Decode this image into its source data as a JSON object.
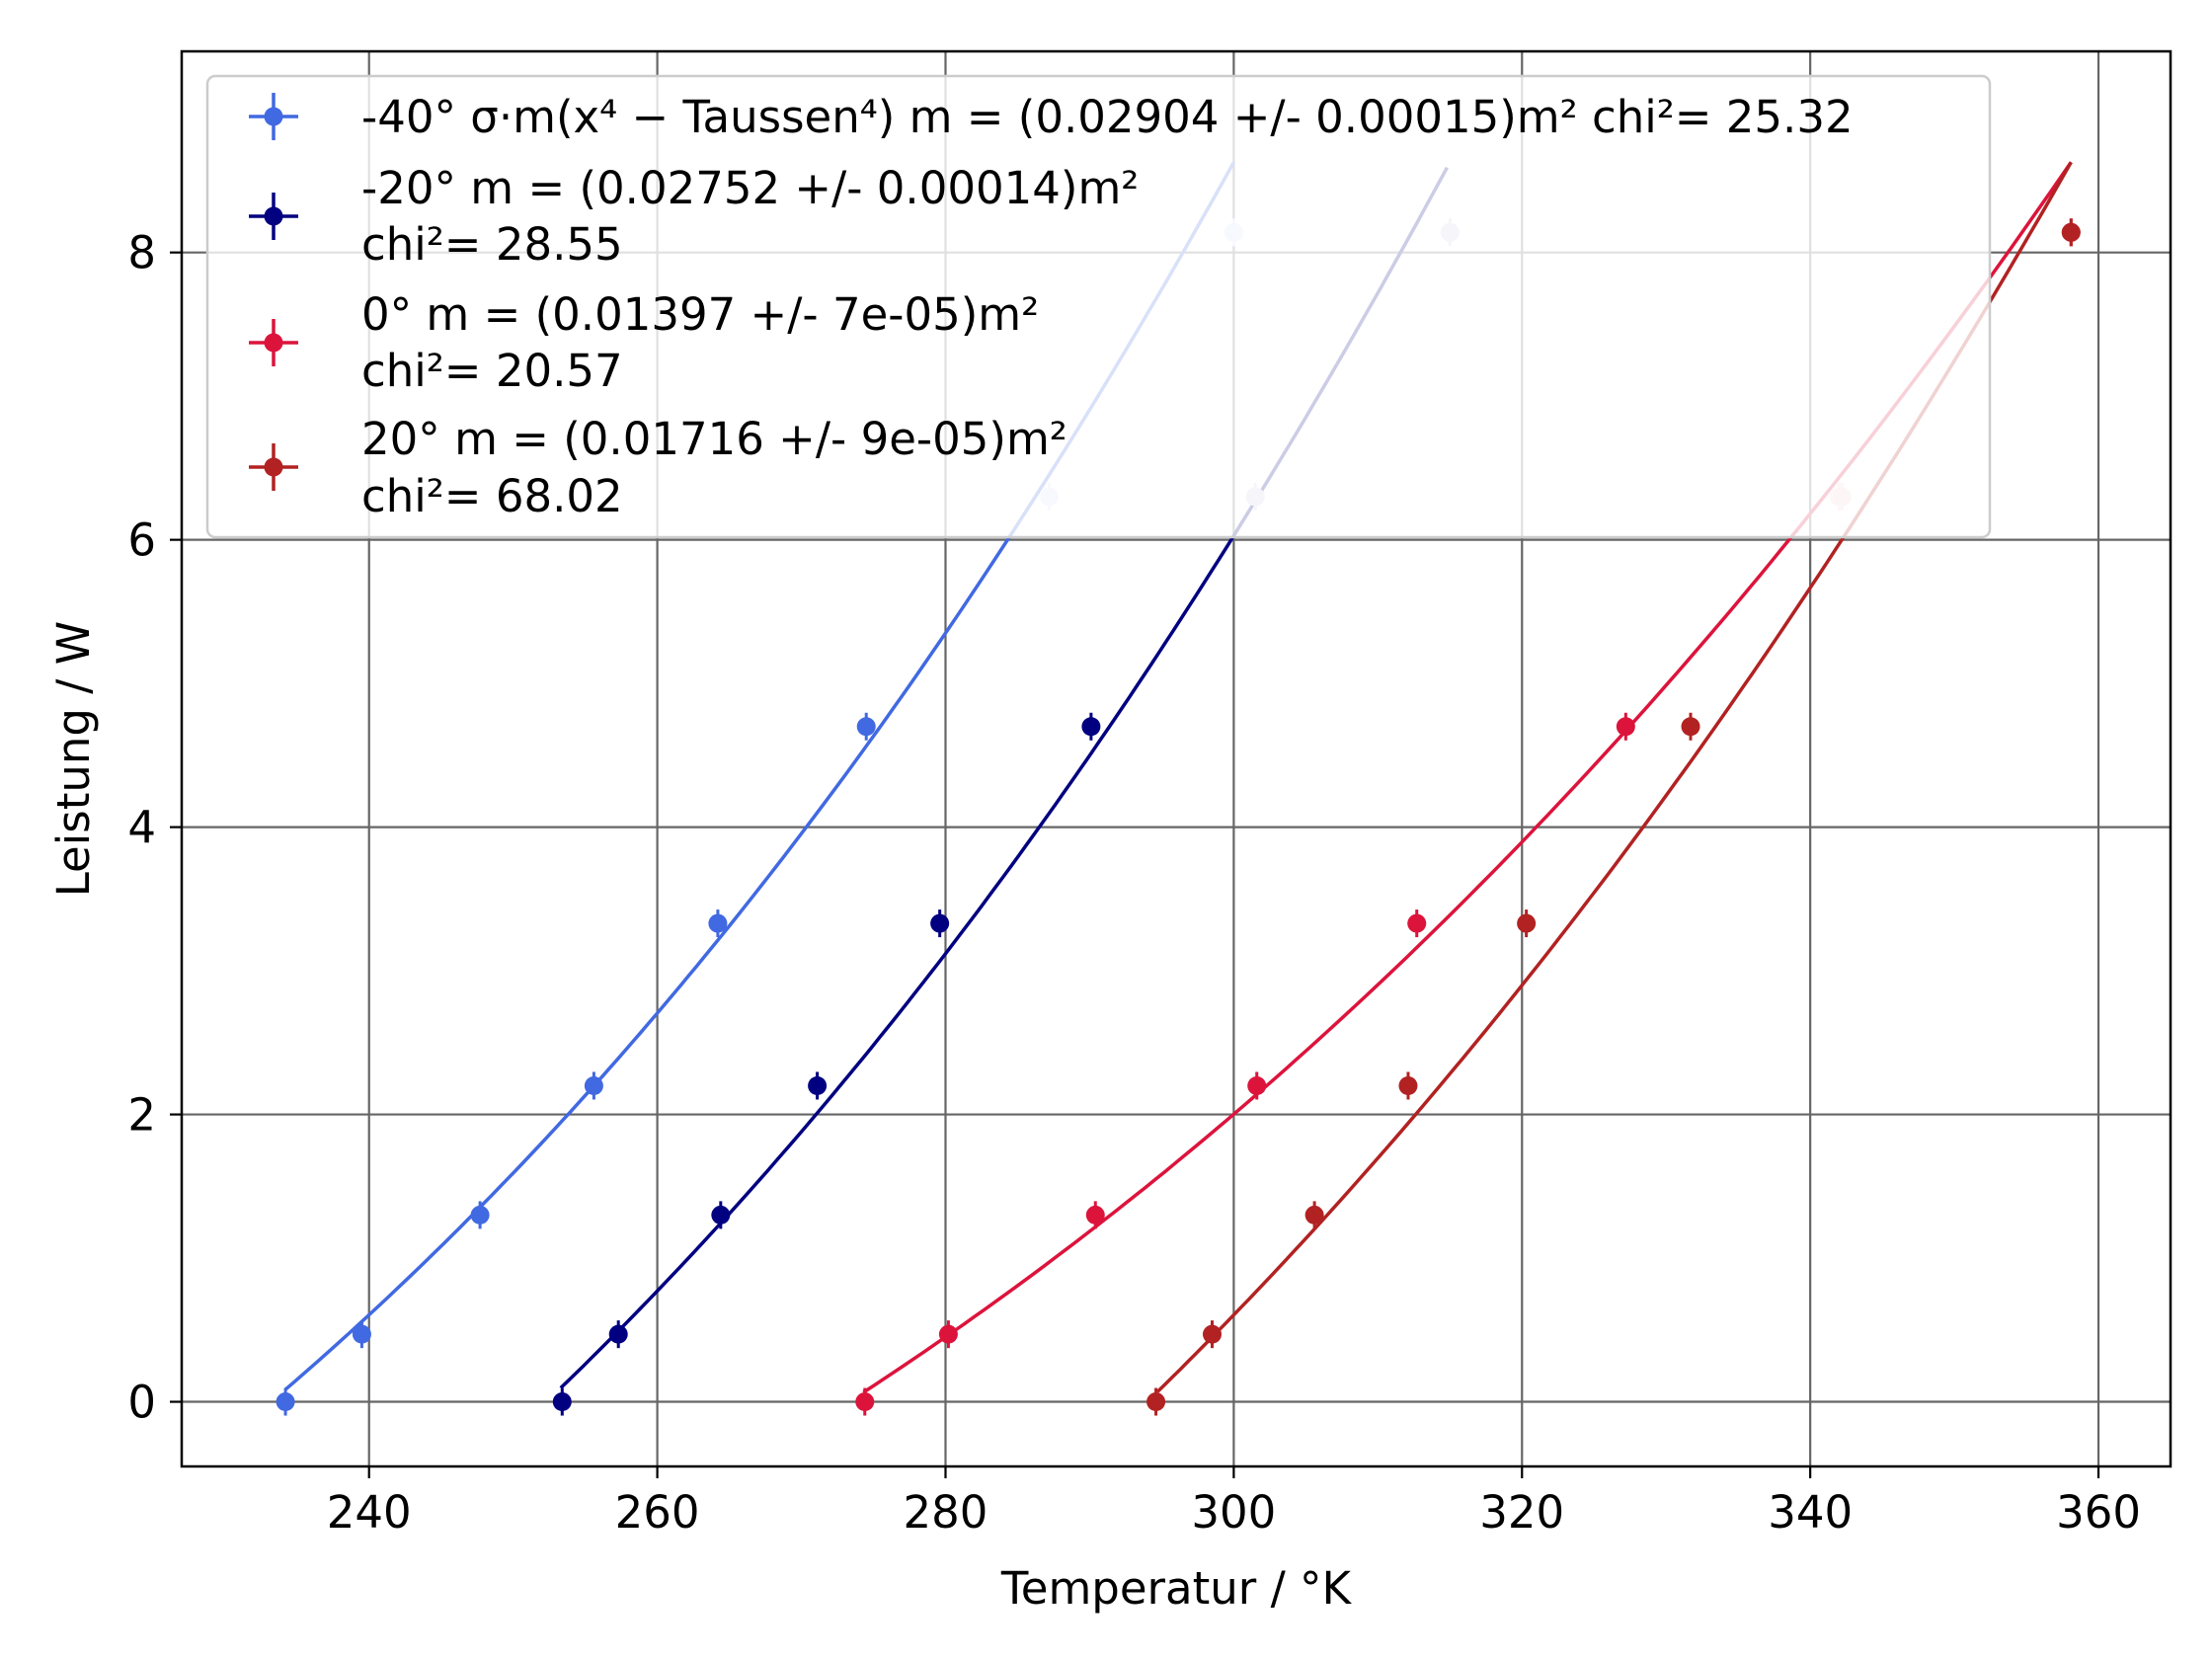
{
  "chart_data": {
    "type": "scatter",
    "xlabel": "Temperatur / °K",
    "ylabel": "Leistung / W",
    "xlim": [
      227,
      365
    ],
    "ylim": [
      -0.45,
      9.4
    ],
    "xticks": [
      240,
      260,
      280,
      300,
      320,
      340,
      360
    ],
    "yticks": [
      0,
      2,
      4,
      6,
      8
    ],
    "grid": true,
    "legend_position": "upper-left",
    "y_points": [
      0,
      0.47,
      1.3,
      2.2,
      3.33,
      4.7,
      6.3,
      8.14
    ],
    "series": [
      {
        "name": "-40°",
        "legend_lines": [
          "-40° σ·m(x⁴ − Taussen⁴)   m = (0.02904 +/- 0.00015)m² chi²= 25.32"
        ],
        "color": "#4169e1",
        "fit_coef": 0.02904,
        "t_outside": 233.2,
        "fit_x_range": [
          234.2,
          300
        ],
        "x": [
          234.2,
          239.5,
          247.7,
          255.6,
          264.2,
          274.5,
          287.2,
          300.0
        ],
        "y": [
          0,
          0.47,
          1.3,
          2.2,
          3.33,
          4.7,
          6.3,
          8.14
        ]
      },
      {
        "name": "-20°",
        "legend_lines": [
          "-20° m = (0.02752 +/- 0.00014)m²",
          "chi²= 28.55"
        ],
        "color": "#000080",
        "fit_coef": 0.02752,
        "t_outside": 252.3,
        "fit_x_range": [
          253.3,
          314.8
        ],
        "x": [
          253.4,
          257.3,
          264.4,
          271.1,
          279.6,
          290.1,
          301.5,
          315.0
        ],
        "y": [
          0,
          0.47,
          1.3,
          2.2,
          3.33,
          4.7,
          6.3,
          8.14
        ]
      },
      {
        "name": "0°",
        "legend_lines": [
          "0° m = (0.01397 +/- 7e-05)m²",
          "chi²= 20.57"
        ],
        "color": "#dc143c",
        "fit_coef": 0.01397,
        "t_outside": 273.3,
        "fit_x_range": [
          274.3,
          358.1
        ],
        "x": [
          274.4,
          280.2,
          290.4,
          301.6,
          312.7,
          327.2,
          342.0,
          358.1
        ],
        "y": [
          0,
          0.47,
          1.3,
          2.2,
          3.33,
          4.7,
          6.3,
          8.14
        ]
      },
      {
        "name": "20°",
        "legend_lines": [
          "20° m = (0.01716 +/- 9e-05)m²",
          "chi²= 68.02"
        ],
        "color": "#b22222",
        "fit_coef": 0.01716,
        "t_outside": 294.0,
        "fit_x_range": [
          294.7,
          358.1
        ],
        "x": [
          294.6,
          298.5,
          305.6,
          312.1,
          320.3,
          331.7,
          342.2,
          358.1
        ],
        "y": [
          0,
          0.47,
          1.3,
          2.2,
          3.33,
          4.7,
          6.3,
          8.14
        ]
      }
    ]
  }
}
